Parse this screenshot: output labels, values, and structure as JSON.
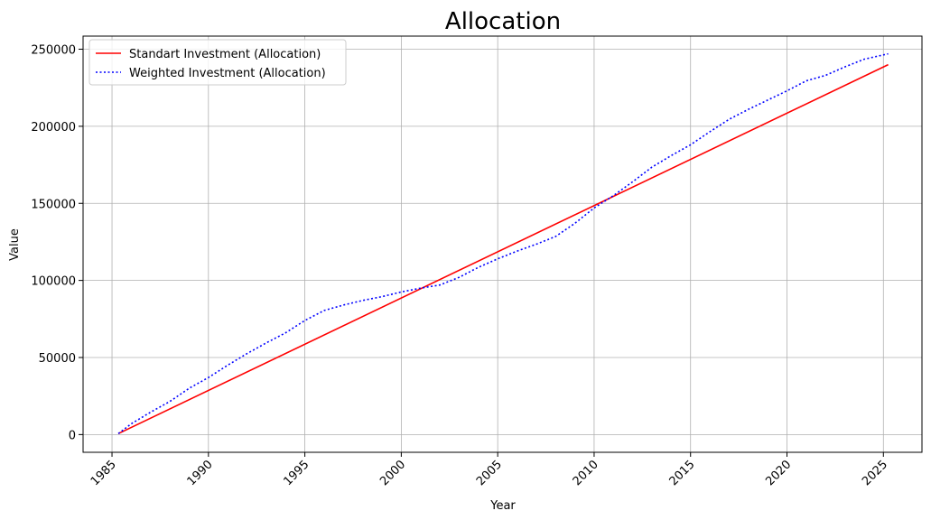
{
  "chart_data": {
    "type": "line",
    "title": "Allocation",
    "xlabel": "Year",
    "ylabel": "Value",
    "xlim": [
      1983.5,
      2027.0
    ],
    "ylim": [
      -11500,
      258500
    ],
    "x_ticks": [
      1985,
      1990,
      1995,
      2000,
      2005,
      2010,
      2015,
      2020,
      2025
    ],
    "x_tick_labels": [
      "1985",
      "1990",
      "1995",
      "2000",
      "2005",
      "2010",
      "2015",
      "2020",
      "2025"
    ],
    "y_ticks": [
      0,
      50000,
      100000,
      150000,
      200000,
      250000
    ],
    "y_tick_labels": [
      "0",
      "50000",
      "100000",
      "150000",
      "200000",
      "250000"
    ],
    "grid": true,
    "legend_position": "top-left",
    "series": [
      {
        "name": "Standart Investment (Allocation)",
        "color": "#ff0000",
        "style": "solid",
        "x": [
          1985.33,
          2025.25
        ],
        "y": [
          600,
          240000
        ]
      },
      {
        "name": "Weighted Investment (Allocation)",
        "color": "#0000ff",
        "style": "dotted",
        "x": [
          1985.33,
          1986,
          1987,
          1988,
          1989,
          1990,
          1991,
          1992,
          1993,
          1994,
          1995,
          1996,
          1997,
          1998,
          1999,
          2000,
          2001,
          2002,
          2003,
          2004,
          2005,
          2006,
          2007,
          2008,
          2009,
          2010,
          2011,
          2012,
          2013,
          2014,
          2015,
          2016,
          2017,
          2018,
          2019,
          2020,
          2021,
          2022,
          2023,
          2024,
          2025.25
        ],
        "y": [
          600,
          7000,
          14500,
          21500,
          30000,
          37000,
          45000,
          52500,
          59500,
          66000,
          74000,
          80500,
          84000,
          87000,
          89500,
          92500,
          95000,
          97000,
          102000,
          108500,
          114000,
          119000,
          123500,
          128500,
          137000,
          147000,
          155000,
          164000,
          173500,
          181000,
          188000,
          196500,
          204500,
          211000,
          217000,
          223000,
          229500,
          233000,
          238500,
          243500,
          247000
        ]
      }
    ]
  }
}
